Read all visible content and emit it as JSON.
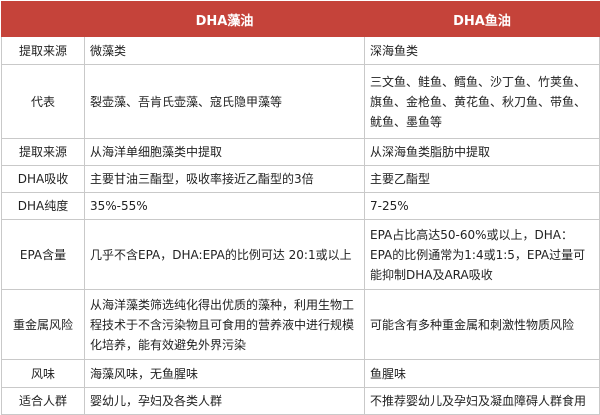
{
  "table": {
    "header": [
      "DHA藻油",
      "DHA鱼油"
    ],
    "rows": [
      [
        "提取来源",
        "微藻类",
        "深海鱼类"
      ],
      [
        "代表",
        "裂壶藻、吾肯氏壶藻、寇氏隐甲藻等",
        "三文鱼、鲑鱼、鳕鱼、沙丁鱼、竹荚鱼、旗鱼、金枪鱼、黄花鱼、秋刀鱼、带鱼、鱿鱼、墨鱼等"
      ],
      [
        "提取来源",
        "从海洋单细胞藻类中提取",
        "从深海鱼类脂肪中提取"
      ],
      [
        "DHA吸收",
        "主要甘油三酯型，吸收率接近乙酯型的3倍",
        "主要乙酯型"
      ],
      [
        "DHA纯度",
        "35%-55%",
        "7-25%"
      ],
      [
        "EPA含量",
        "几乎不含EPA，DHA:EPA的比例可达 20:1或以上",
        "EPA占比高达50-60%或以上，DHA：EPA的比例通常为1:4或1:5，EPA过量可能抑制DHA及ARA吸收"
      ],
      [
        "重金属风险",
        "从海洋藻类筛选纯化得出优质的藻种，利用生物工程技术于不含污染物且可食用的营养液中进行规模化培养，能有效避免外界污染",
        "可能含有多种重金属和刺激性物质风险"
      ],
      [
        "风味",
        "海藻风味，无鱼腥味",
        "鱼腥味"
      ],
      [
        "适合人群",
        "婴幼儿，孕妇及各类人群",
        "不推荐婴幼儿及孕妇及凝血障碍人群食用"
      ]
    ]
  }
}
